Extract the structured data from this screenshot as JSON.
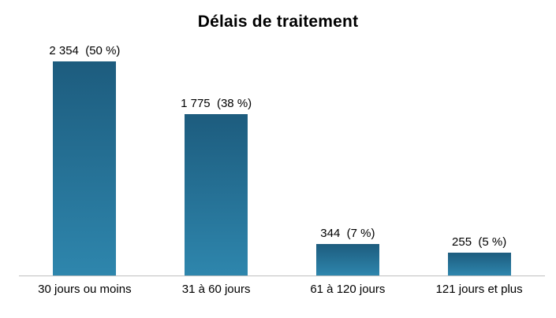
{
  "chart_data": {
    "type": "bar",
    "title": "Délais de traitement",
    "categories": [
      "30 jours ou moins",
      "31 à 60 jours",
      "61 à 120 jours",
      "121 jours et plus"
    ],
    "values": [
      2354,
      1775,
      344,
      255
    ],
    "value_labels": [
      "2 354  (50 %)",
      "1 775  (38 %)",
      "344  (7 %)",
      "255  (5 %)"
    ],
    "percentages": [
      50,
      38,
      7,
      5
    ],
    "ylim": [
      0,
      2400
    ],
    "grid": false,
    "legend": "none",
    "bar_color_top": "#1d5c7e",
    "bar_color_bottom": "#2e86ad",
    "axis_line_color": "#bfbfbf"
  }
}
